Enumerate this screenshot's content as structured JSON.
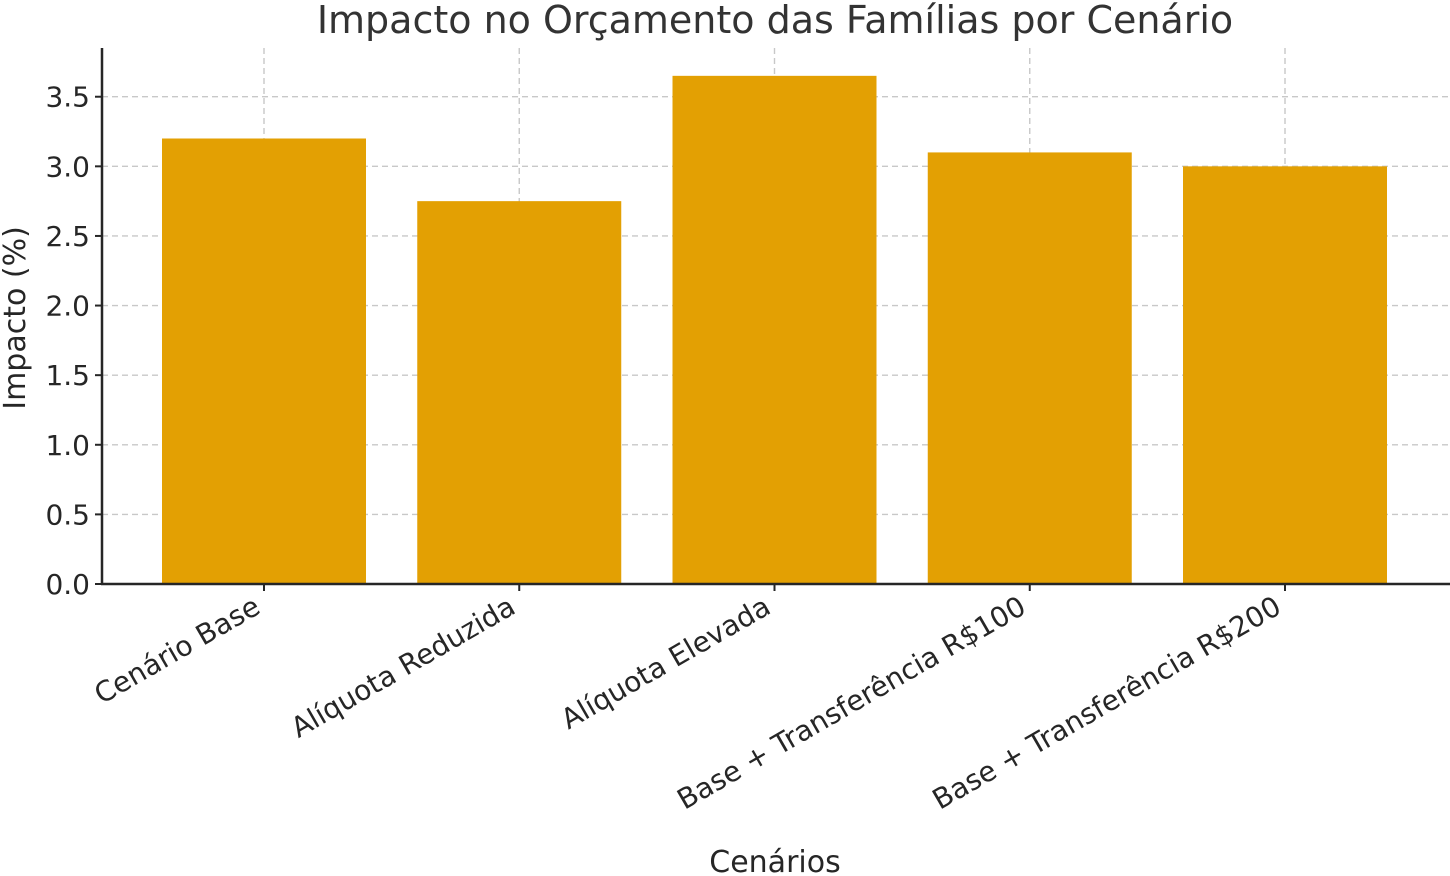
{
  "chart_data": {
    "type": "bar",
    "title": "Impacto no Orçamento das Famílias por Cenário",
    "xlabel": "Cenários",
    "ylabel": "Impacto (%)",
    "categories": [
      "Cenário Base",
      "Alíquota Reduzida",
      "Alíquota Elevada",
      "Base + Transferência R$100",
      "Base + Transferência R$200"
    ],
    "values": [
      3.2,
      2.75,
      3.65,
      3.1,
      3.0
    ],
    "ylim": [
      0,
      3.85
    ],
    "yticks": [
      "0.0",
      "0.5",
      "1.0",
      "1.5",
      "2.0",
      "2.5",
      "3.0",
      "3.5"
    ],
    "grid": true,
    "bar_color": "#E3A003"
  }
}
